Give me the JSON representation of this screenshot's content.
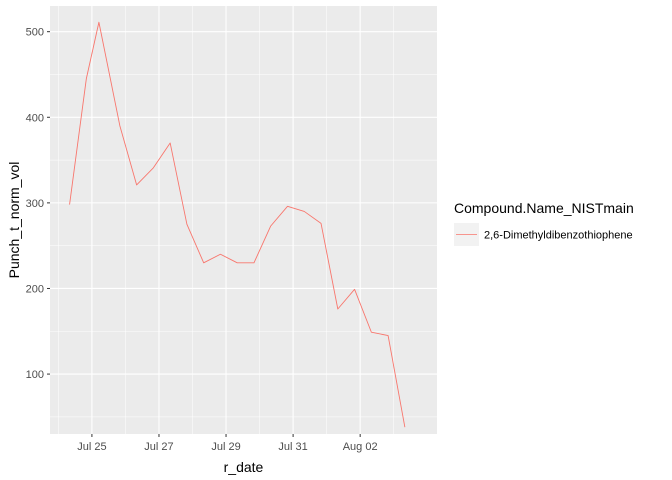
{
  "chart_data": {
    "type": "line",
    "xlabel": "r_date",
    "ylabel": "Punch_t_norm_vol",
    "x_ticks": [
      {
        "date": "2023-07-25",
        "label": "Jul 25"
      },
      {
        "date": "2023-07-27",
        "label": "Jul 27"
      },
      {
        "date": "2023-07-29",
        "label": "Jul 29"
      },
      {
        "date": "2023-07-31",
        "label": "Jul 31"
      },
      {
        "date": "2023-08-02",
        "label": "Aug 02"
      }
    ],
    "y_ticks": [
      100,
      200,
      300,
      400,
      500
    ],
    "xlim": [
      "2023-07-23T18:00",
      "2023-08-04T07:00"
    ],
    "ylim": [
      30,
      530
    ],
    "grid": true,
    "legend": {
      "title": "Compound.Name_NISTmain",
      "position": "right"
    },
    "series": [
      {
        "name": "2,6-Dimethyldibenzothiophene",
        "color": "#F8766D",
        "points": [
          {
            "x": "2023-07-24T08:00",
            "y": 298
          },
          {
            "x": "2023-07-24T20:00",
            "y": 445
          },
          {
            "x": "2023-07-25T05:00",
            "y": 511
          },
          {
            "x": "2023-07-25T20:00",
            "y": 390
          },
          {
            "x": "2023-07-26T08:00",
            "y": 321
          },
          {
            "x": "2023-07-26T20:00",
            "y": 341
          },
          {
            "x": "2023-07-27T08:00",
            "y": 370
          },
          {
            "x": "2023-07-27T20:00",
            "y": 275
          },
          {
            "x": "2023-07-28T08:00",
            "y": 230
          },
          {
            "x": "2023-07-28T20:00",
            "y": 240
          },
          {
            "x": "2023-07-29T08:00",
            "y": 230
          },
          {
            "x": "2023-07-29T20:00",
            "y": 230
          },
          {
            "x": "2023-07-30T08:00",
            "y": 273
          },
          {
            "x": "2023-07-30T20:00",
            "y": 296
          },
          {
            "x": "2023-07-31T08:00",
            "y": 290
          },
          {
            "x": "2023-07-31T20:00",
            "y": 276
          },
          {
            "x": "2023-08-01T08:00",
            "y": 176
          },
          {
            "x": "2023-08-01T20:00",
            "y": 199
          },
          {
            "x": "2023-08-02T08:00",
            "y": 149
          },
          {
            "x": "2023-08-02T20:00",
            "y": 145
          },
          {
            "x": "2023-08-03T08:00",
            "y": 38
          }
        ]
      }
    ]
  }
}
